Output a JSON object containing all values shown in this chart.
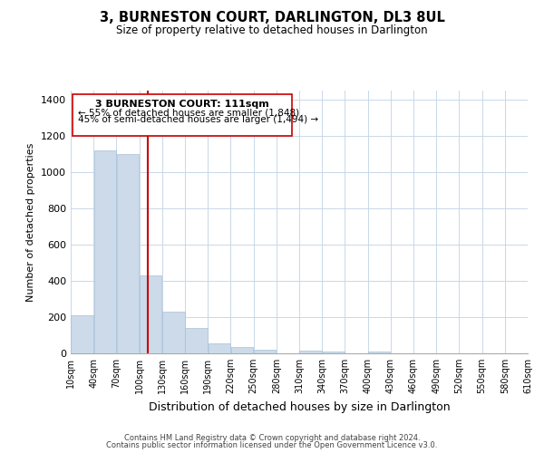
{
  "title": "3, BURNESTON COURT, DARLINGTON, DL3 8UL",
  "subtitle": "Size of property relative to detached houses in Darlington",
  "xlabel": "Distribution of detached houses by size in Darlington",
  "ylabel": "Number of detached properties",
  "bar_color": "#ccdaea",
  "bar_edge_color": "#a8c0d6",
  "vline_color": "#cc0000",
  "vline_x": 111,
  "bin_edges": [
    10,
    40,
    70,
    100,
    130,
    160,
    190,
    220,
    250,
    280,
    310,
    340,
    370,
    400,
    430,
    460,
    490,
    520,
    550,
    580,
    610
  ],
  "bar_heights": [
    210,
    1120,
    1100,
    430,
    230,
    140,
    55,
    35,
    20,
    0,
    15,
    10,
    0,
    10,
    0,
    0,
    0,
    0,
    0,
    0
  ],
  "tick_labels": [
    "10sqm",
    "40sqm",
    "70sqm",
    "100sqm",
    "130sqm",
    "160sqm",
    "190sqm",
    "220sqm",
    "250sqm",
    "280sqm",
    "310sqm",
    "340sqm",
    "370sqm",
    "400sqm",
    "430sqm",
    "460sqm",
    "490sqm",
    "520sqm",
    "550sqm",
    "580sqm",
    "610sqm"
  ],
  "ylim": [
    0,
    1450
  ],
  "yticks": [
    0,
    200,
    400,
    600,
    800,
    1000,
    1200,
    1400
  ],
  "annotation_title": "3 BURNESTON COURT: 111sqm",
  "annotation_line1": "← 55% of detached houses are smaller (1,848)",
  "annotation_line2": "45% of semi-detached houses are larger (1,494) →",
  "footer1": "Contains HM Land Registry data © Crown copyright and database right 2024.",
  "footer2": "Contains public sector information licensed under the Open Government Licence v3.0.",
  "background_color": "#ffffff",
  "grid_color": "#c8d8e8"
}
